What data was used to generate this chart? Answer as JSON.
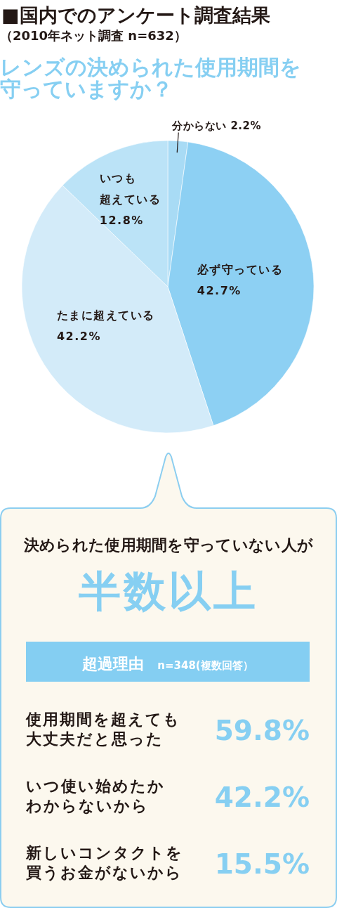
{
  "chart_data": [
    {
      "type": "pie",
      "title": "■国内でのアンケート調査結果",
      "subtitle": "（2010年ネット調査 n=632）",
      "annotations": [
        "レンズの決められた使用期間を守っていますか？"
      ],
      "categories": [
        "分からない",
        "必ず守っている",
        "たまに超えている",
        "いつも超えている"
      ],
      "values": [
        2.2,
        42.7,
        42.2,
        12.8
      ],
      "value_labels": [
        "2.2%",
        "42.7%",
        "42.2%",
        "12.8%"
      ],
      "colors": [
        "#a8dbf5",
        "#8dd0f3",
        "#d3ebf9",
        "#bbe3f7"
      ]
    },
    {
      "type": "other",
      "title": "決められた使用期間を守っていない人が",
      "subtitle": "半数以上",
      "annotations": [
        "超過理由",
        "n=348(複数回答）"
      ],
      "categories": [
        "使用期間を超えても大丈夫だと思った",
        "いつ使い始めたかわからないから",
        "新しいコンタクトを買うお金がないから"
      ],
      "values": [
        59.8,
        42.2,
        15.5
      ],
      "value_labels": [
        "59.8%",
        "42.2%",
        "15.5%"
      ],
      "color": "#86cff2"
    }
  ]
}
